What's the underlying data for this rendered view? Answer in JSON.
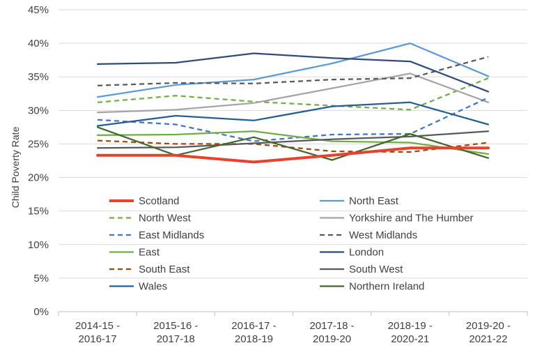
{
  "chart_data": {
    "type": "line",
    "title": "",
    "xlabel": "",
    "ylabel": "Child Poverty Rate",
    "ylim": [
      0,
      45
    ],
    "yticks": [
      0,
      5,
      10,
      15,
      20,
      25,
      30,
      35,
      40,
      45
    ],
    "y_tick_labels": [
      "0%",
      "5%",
      "10%",
      "15%",
      "20%",
      "25%",
      "30%",
      "35%",
      "40%",
      "45%"
    ],
    "y_unit": "%",
    "grid": true,
    "legend_position": "inside-bottom",
    "categories": [
      [
        "2014-15 -",
        "2016-17"
      ],
      [
        "2015-16 -",
        "2017-18"
      ],
      [
        "2016-17 -",
        "2018-19"
      ],
      [
        "2017-18 -",
        "2019-20"
      ],
      [
        "2018-19 -",
        "2020-21"
      ],
      [
        "2019-20 -",
        "2021-22"
      ]
    ],
    "series": [
      {
        "name": "Scotland",
        "color": "#e8412c",
        "dash": false,
        "bold": true,
        "values": [
          23.3,
          23.3,
          22.3,
          23.3,
          24.4,
          24.4
        ]
      },
      {
        "name": "North East",
        "color": "#5b9bd5",
        "dash": false,
        "values": [
          32.0,
          33.8,
          34.6,
          37.0,
          40.0,
          35.1
        ]
      },
      {
        "name": "North West",
        "color": "#70ad47",
        "dash": true,
        "values": [
          31.2,
          32.2,
          31.3,
          30.7,
          30.1,
          34.8
        ]
      },
      {
        "name": "Yorkshire and The Humber",
        "color": "#a5a5a5",
        "dash": false,
        "values": [
          29.7,
          30.1,
          31.1,
          33.3,
          35.5,
          31.2
        ]
      },
      {
        "name": "East Midlands",
        "color": "#4472c4",
        "dash": true,
        "values": [
          28.6,
          27.9,
          25.4,
          26.4,
          26.5,
          31.9
        ]
      },
      {
        "name": "West Midlands",
        "color": "#595959",
        "dash": true,
        "values": [
          33.7,
          34.1,
          34.0,
          34.6,
          34.8,
          38.0
        ]
      },
      {
        "name": "East",
        "color": "#70ad47",
        "dash": false,
        "values": [
          26.3,
          26.4,
          26.9,
          25.4,
          25.2,
          23.5
        ]
      },
      {
        "name": "London",
        "color": "#2f4b7c",
        "dash": false,
        "values": [
          36.9,
          37.1,
          38.5,
          37.8,
          37.3,
          32.8
        ]
      },
      {
        "name": "South East",
        "color": "#9e480e",
        "dash": true,
        "values": [
          25.5,
          25.0,
          25.0,
          23.9,
          23.8,
          25.2
        ]
      },
      {
        "name": "South West",
        "color": "#595959",
        "dash": false,
        "values": [
          24.4,
          24.5,
          25.1,
          25.7,
          26.1,
          26.9
        ]
      },
      {
        "name": "Wales",
        "color": "#255e91",
        "dash": false,
        "values": [
          27.7,
          29.2,
          28.5,
          30.6,
          31.2,
          27.9
        ]
      },
      {
        "name": "Northern Ireland",
        "color": "#43682b",
        "dash": false,
        "values": [
          27.5,
          23.3,
          26.0,
          22.6,
          26.5,
          22.9
        ]
      }
    ]
  }
}
